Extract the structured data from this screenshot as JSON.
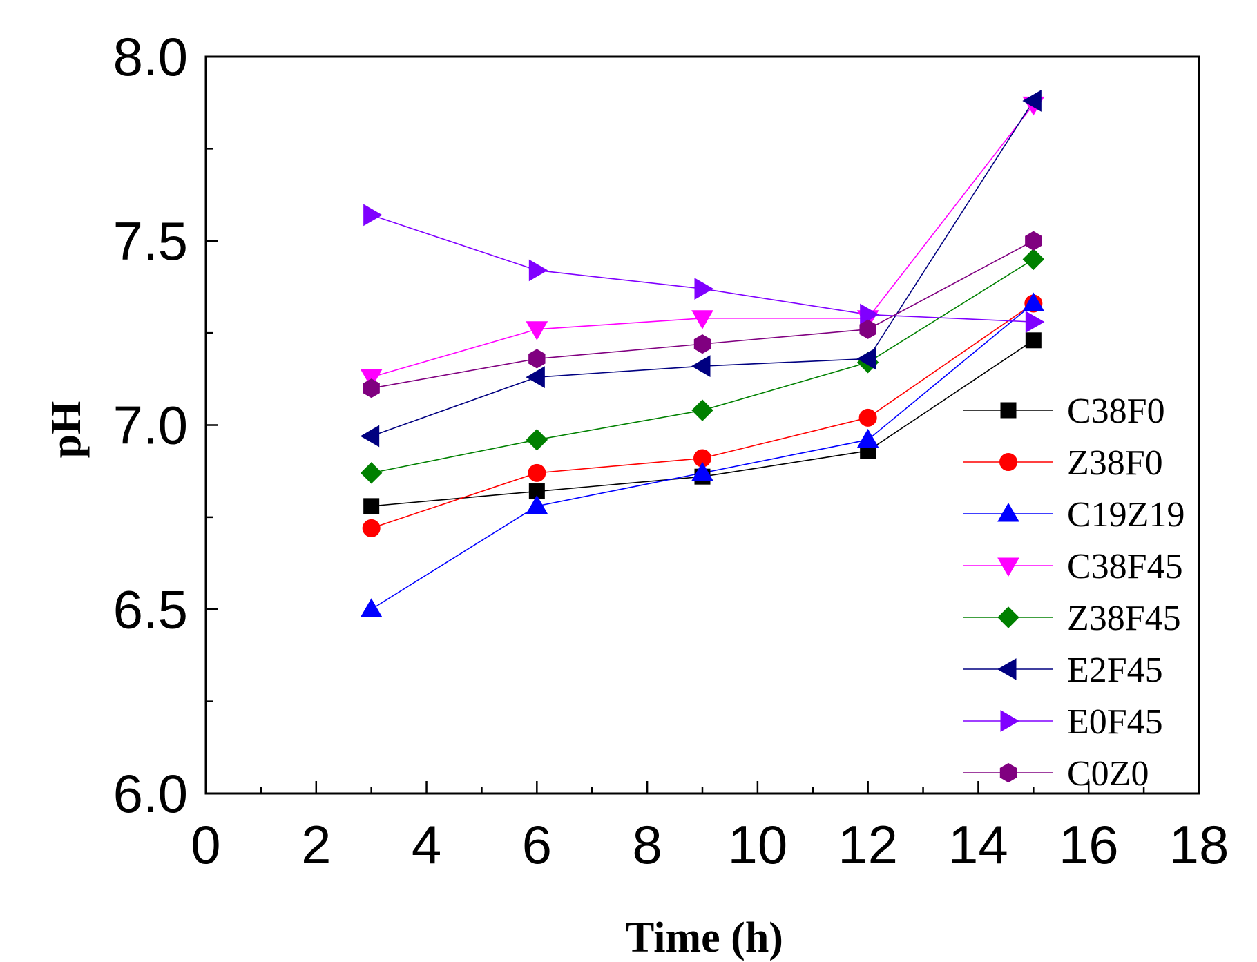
{
  "chart_data": {
    "type": "line",
    "title": "",
    "xlabel": "Time (h)",
    "ylabel": "pH",
    "xlim": [
      0,
      18
    ],
    "ylim": [
      6.0,
      8.0
    ],
    "xticks": [
      0,
      2,
      4,
      6,
      8,
      10,
      12,
      14,
      16,
      18
    ],
    "xtick_labels": [
      "0",
      "2",
      "4",
      "6",
      "8",
      "10",
      "12",
      "14",
      "16",
      "18"
    ],
    "yticks": [
      6.0,
      6.5,
      7.0,
      7.5,
      8.0
    ],
    "ytick_labels": [
      "6.0",
      "6.5",
      "7.0",
      "7.5",
      "8.0"
    ],
    "grid": false,
    "legend_position": "right",
    "x": [
      3,
      6,
      9,
      12,
      15
    ],
    "series": [
      {
        "name": "C38F0",
        "color": "#000000",
        "marker": "square",
        "values": [
          6.78,
          6.82,
          6.86,
          6.93,
          7.23
        ]
      },
      {
        "name": "Z38F0",
        "color": "#ff0000",
        "marker": "circle",
        "values": [
          6.72,
          6.87,
          6.91,
          7.02,
          7.33
        ]
      },
      {
        "name": "C19Z19",
        "color": "#0000ff",
        "marker": "triangle-up",
        "values": [
          6.5,
          6.78,
          6.87,
          6.96,
          7.33
        ]
      },
      {
        "name": "C38F45",
        "color": "#ff00ff",
        "marker": "triangle-down",
        "values": [
          7.13,
          7.26,
          7.29,
          7.29,
          7.87
        ]
      },
      {
        "name": "Z38F45",
        "color": "#008000",
        "marker": "diamond",
        "values": [
          6.87,
          6.96,
          7.04,
          7.17,
          7.45
        ]
      },
      {
        "name": "E2F45",
        "color": "#000080",
        "marker": "triangle-left",
        "values": [
          6.97,
          7.13,
          7.16,
          7.18,
          7.88
        ]
      },
      {
        "name": "E0F45",
        "color": "#8000ff",
        "marker": "triangle-right",
        "values": [
          7.57,
          7.42,
          7.37,
          7.3,
          7.28
        ]
      },
      {
        "name": "C0Z0",
        "color": "#800080",
        "marker": "hexagon",
        "values": [
          7.1,
          7.18,
          7.22,
          7.26,
          7.5
        ]
      }
    ]
  }
}
